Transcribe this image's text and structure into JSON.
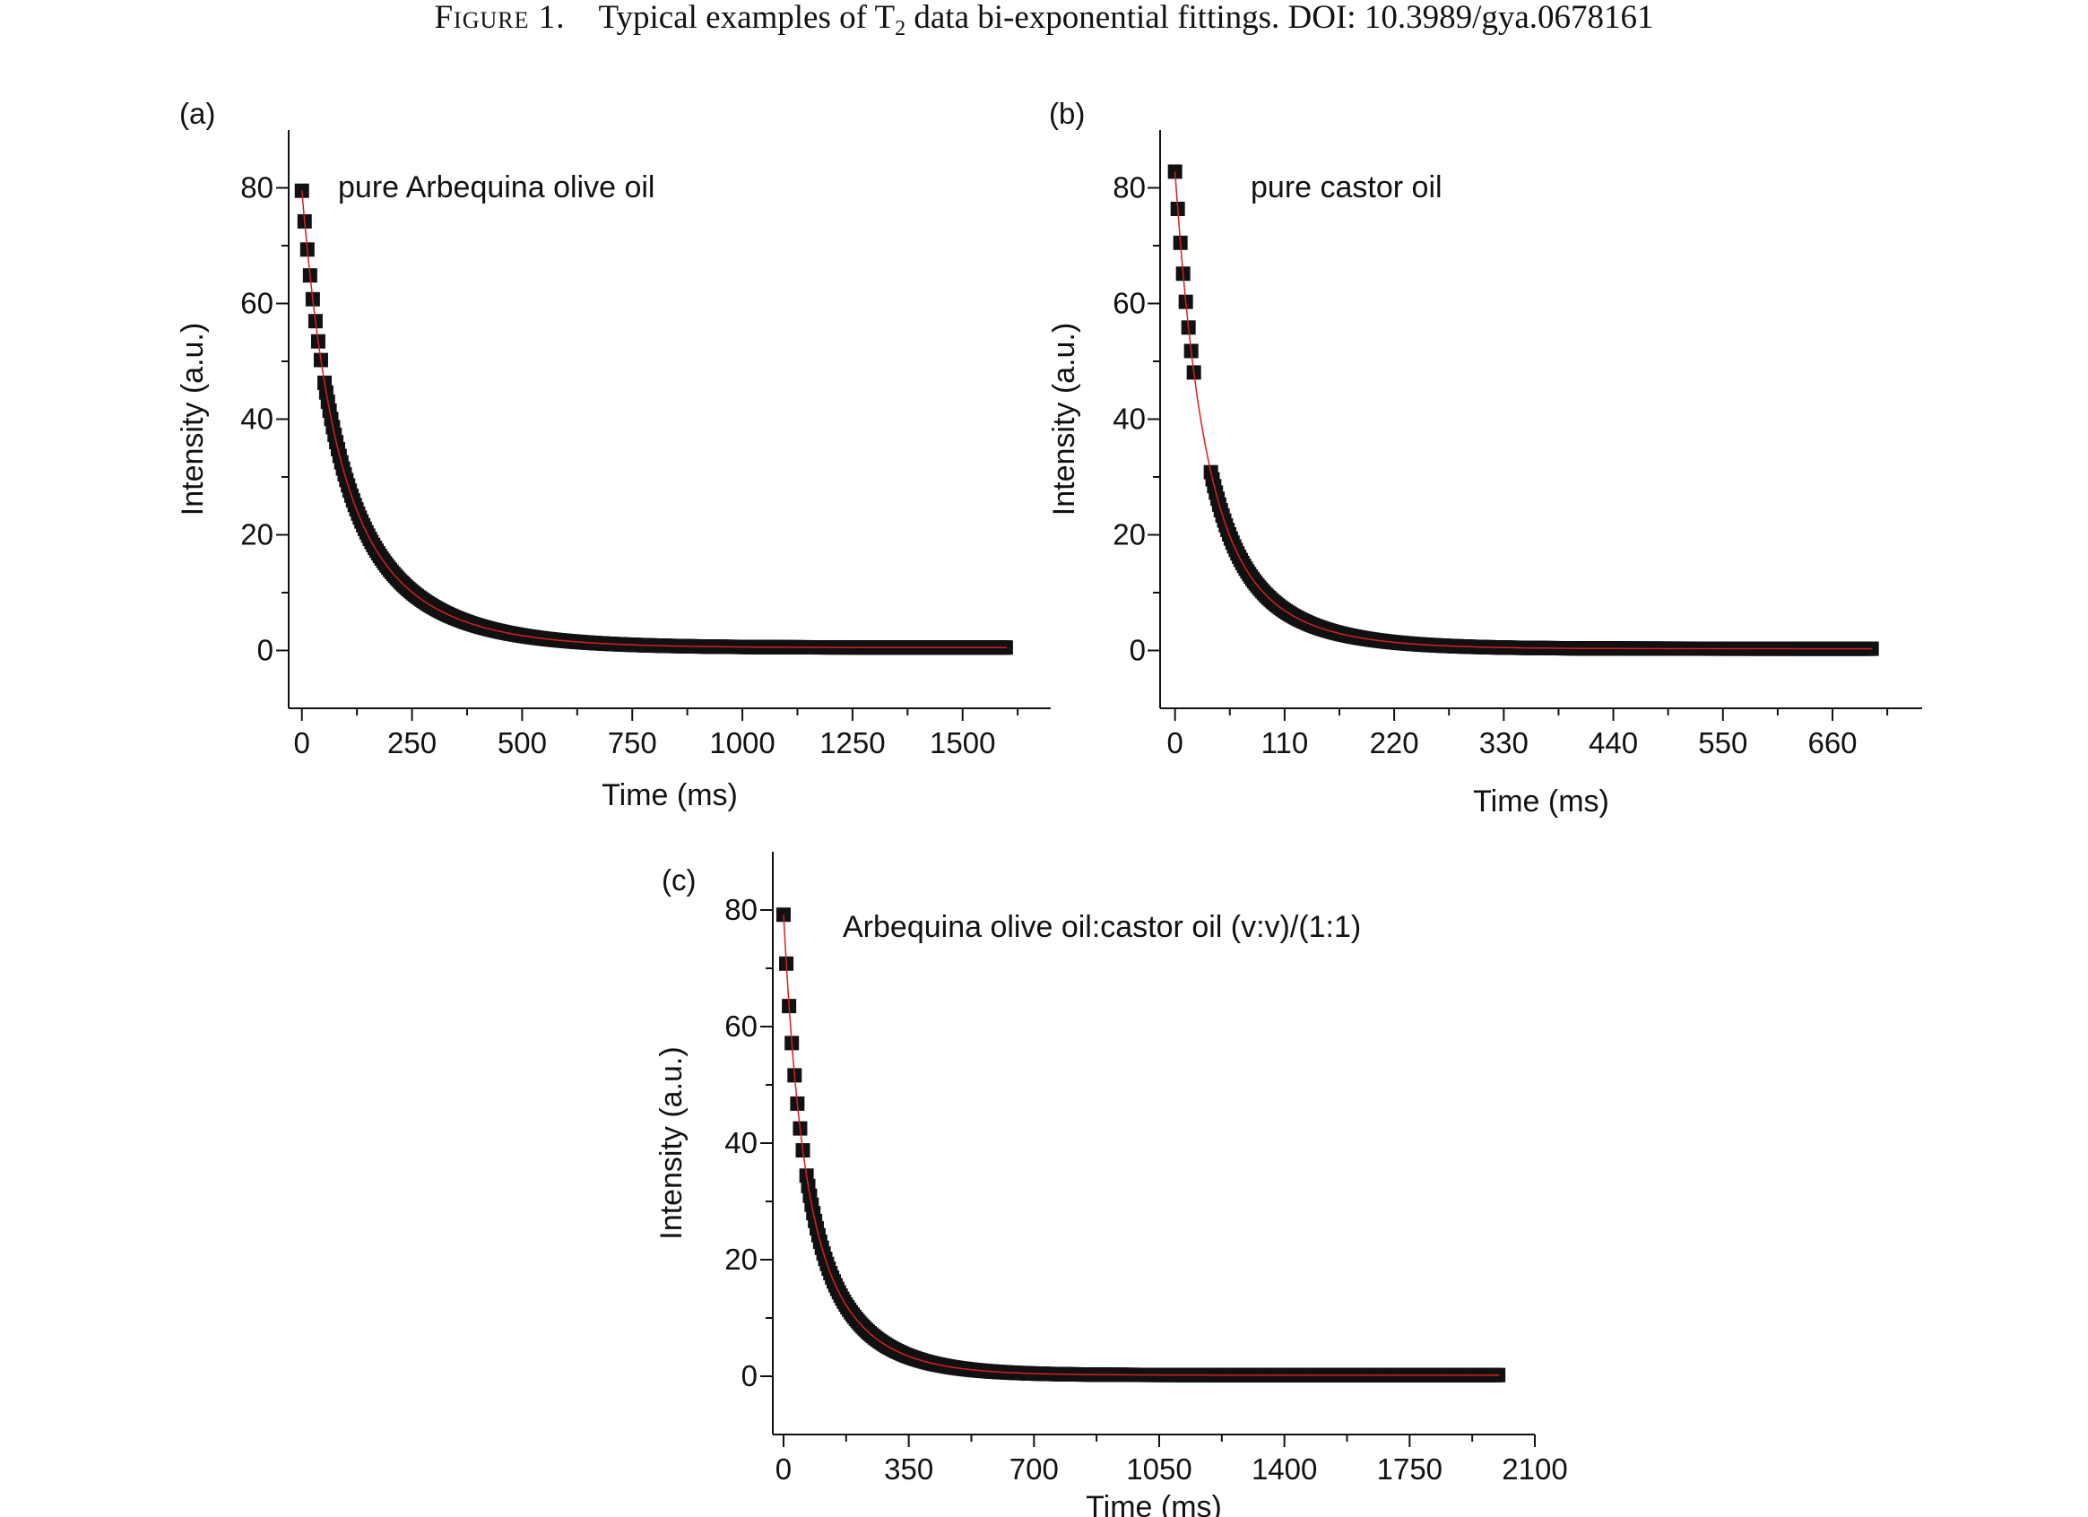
{
  "caption": {
    "figure_label": "Figure 1.",
    "text_before": "Typical examples of T",
    "subscript": "2",
    "text_after": " data bi-exponential fittings. DOI: 10.3989/gya.0678161"
  },
  "colors": {
    "marker": "#111111",
    "fit_line": "#d62020",
    "axis": "#111111"
  },
  "chart_data": [
    {
      "panel": "(a)",
      "type": "scatter",
      "title": "pure Arbequina olive oil",
      "xlabel": "Time (ms)",
      "ylabel": "Intensity (a.u.)",
      "xlim": [
        -30,
        1700
      ],
      "ylim": [
        -10,
        90
      ],
      "xticks": [
        0,
        250,
        500,
        750,
        1000,
        1250,
        1500
      ],
      "yticks": [
        0,
        20,
        40,
        60,
        80
      ],
      "series": [
        {
          "marker": "square",
          "fit": "line",
          "model": {
            "a1": 40,
            "t1": 60,
            "a2": 39,
            "t2": 170,
            "offset": 0.5
          },
          "x_start": 0,
          "x_end": 1600,
          "dense_from": 25
        }
      ]
    },
    {
      "panel": "(b)",
      "type": "scatter",
      "title": "pure castor oil",
      "xlabel": "Time (ms)",
      "ylabel": "Intensity (a.u.)",
      "xlim": [
        -15,
        750
      ],
      "ylim": [
        -10,
        90
      ],
      "xticks": [
        0,
        110,
        220,
        330,
        440,
        550,
        660
      ],
      "yticks": [
        0,
        20,
        40,
        60,
        80
      ],
      "series": [
        {
          "marker": "square",
          "fit": "line",
          "model": {
            "a1": 50,
            "t1": 25,
            "a2": 32.5,
            "t2": 65,
            "offset": 0.3
          },
          "x_start": 0,
          "x_end": 700,
          "dense_from": 40
        }
      ]
    },
    {
      "panel": "(c)",
      "type": "scatter",
      "title": "Arbequina olive oil:castor oil (v:v)/(1:1)",
      "xlabel": "Time (ms)",
      "ylabel": "Intensity (a.u.)",
      "xlim": [
        -30,
        2100
      ],
      "ylim": [
        -10,
        90
      ],
      "xticks": [
        0,
        350,
        700,
        1050,
        1400,
        1750,
        2100
      ],
      "yticks": [
        0,
        20,
        40,
        60,
        80
      ],
      "series": [
        {
          "marker": "square",
          "fit": "line",
          "model": {
            "a1": 40,
            "t1": 45,
            "a2": 39,
            "t2": 140,
            "offset": 0.2
          },
          "x_start": 0,
          "x_end": 2000,
          "dense_from": 25
        }
      ]
    }
  ]
}
